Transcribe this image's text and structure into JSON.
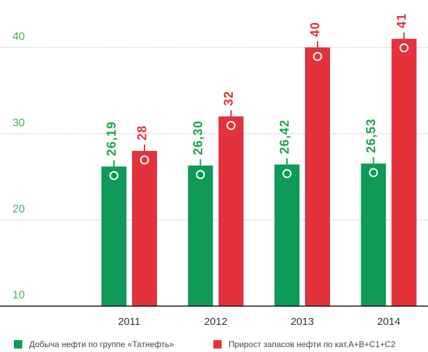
{
  "chart_data": {
    "type": "bar",
    "categories": [
      "2011",
      "2012",
      "2013",
      "2014"
    ],
    "series": [
      {
        "name": "Добыча нефти по группе «Татнефть»",
        "color": "#0f9a57",
        "label_color": "#1da24f",
        "values": [
          26.19,
          26.3,
          26.42,
          26.53
        ],
        "value_labels": [
          "26,19",
          "26,30",
          "26,42",
          "26,53"
        ]
      },
      {
        "name": "Прирост запасов нефти по кат.А+В+С1+С2",
        "color": "#e3323b",
        "label_color": "#e3323b",
        "values": [
          28,
          32,
          40,
          41
        ]
      }
    ],
    "ylim": [
      10,
      45.5
    ],
    "yticks": [
      10,
      20,
      30,
      40
    ],
    "grid": true,
    "legend": "bottom"
  }
}
